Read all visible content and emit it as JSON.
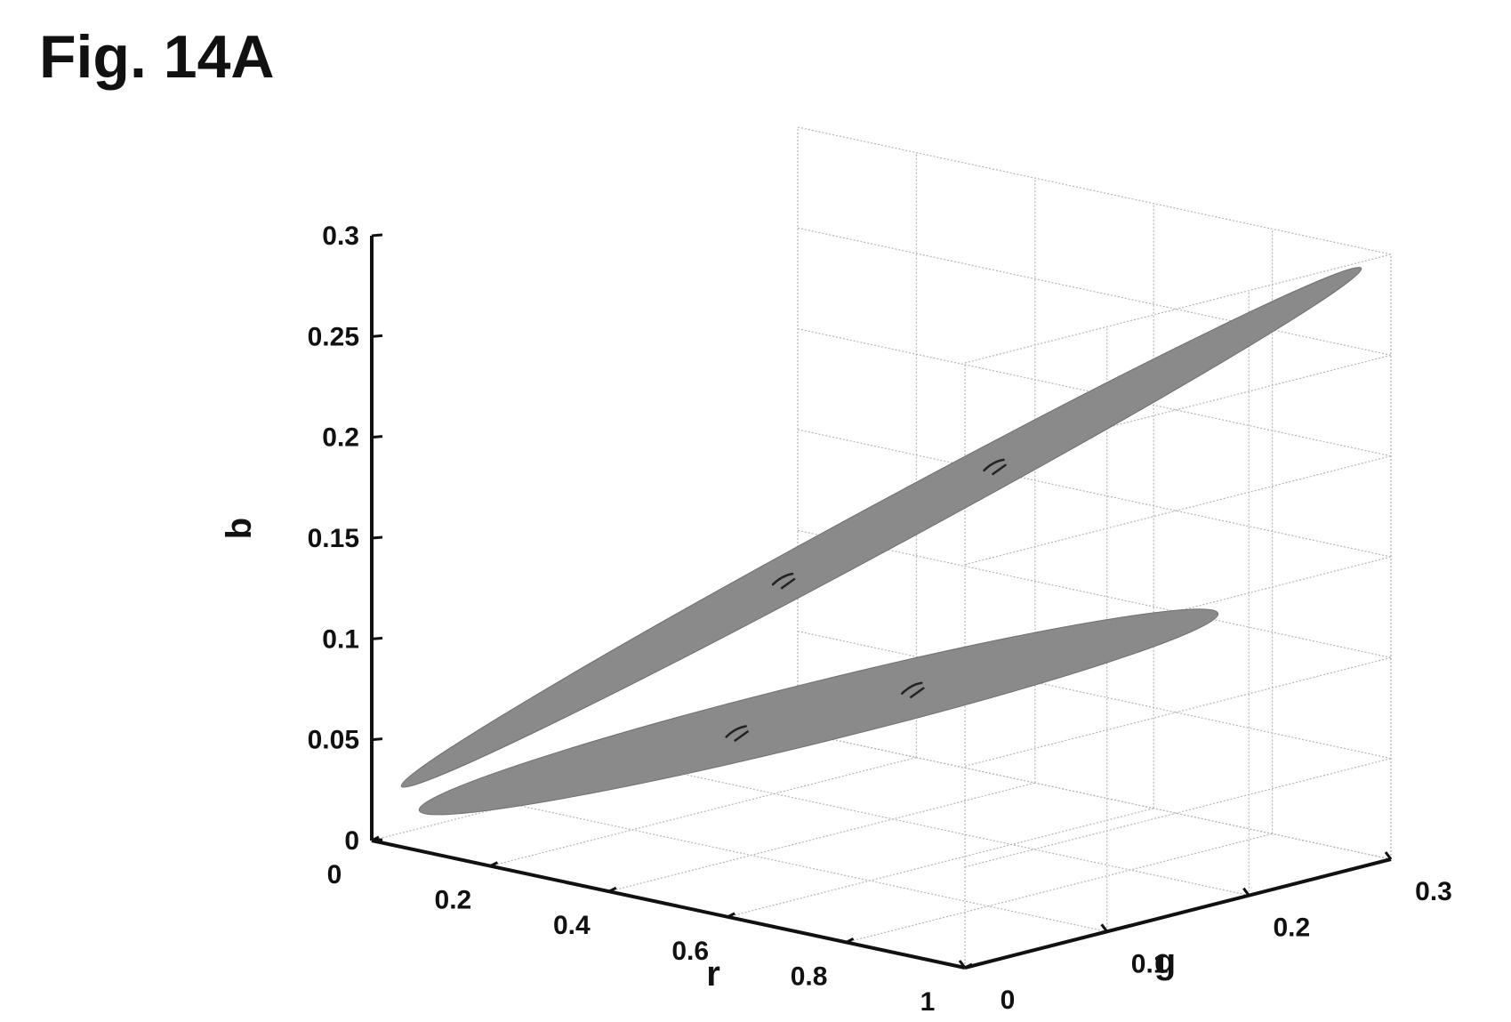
{
  "figure_label": "Fig. 14A",
  "chart_data": {
    "type": "scatter3d",
    "title": "Fig. 14A",
    "xlabel": "r",
    "ylabel": "g",
    "zlabel": "b",
    "xlim": [
      0,
      1
    ],
    "ylim": [
      0,
      0.3
    ],
    "zlim": [
      0,
      0.3
    ],
    "x_ticks": [
      "0",
      "0.2",
      "0.4",
      "0.6",
      "0.8",
      "1"
    ],
    "y_ticks": [
      "0",
      "0.1",
      "0.2",
      "0.3"
    ],
    "z_ticks": [
      "0",
      "0.05",
      "0.1",
      "0.15",
      "0.2",
      "0.25",
      "0.3"
    ],
    "grid": true,
    "series": [
      {
        "shape": "ellipsoid",
        "endpoints": [
          [
            0.05,
            0.0,
            0.03
          ],
          [
            0.95,
            0.3,
            0.29
          ]
        ],
        "color": "#8a8a8a"
      },
      {
        "shape": "ellipsoid",
        "endpoints": [
          [
            0.08,
            0.0,
            0.02
          ],
          [
            0.9,
            0.22,
            0.13
          ]
        ],
        "color": "#8a8a8a"
      }
    ]
  }
}
